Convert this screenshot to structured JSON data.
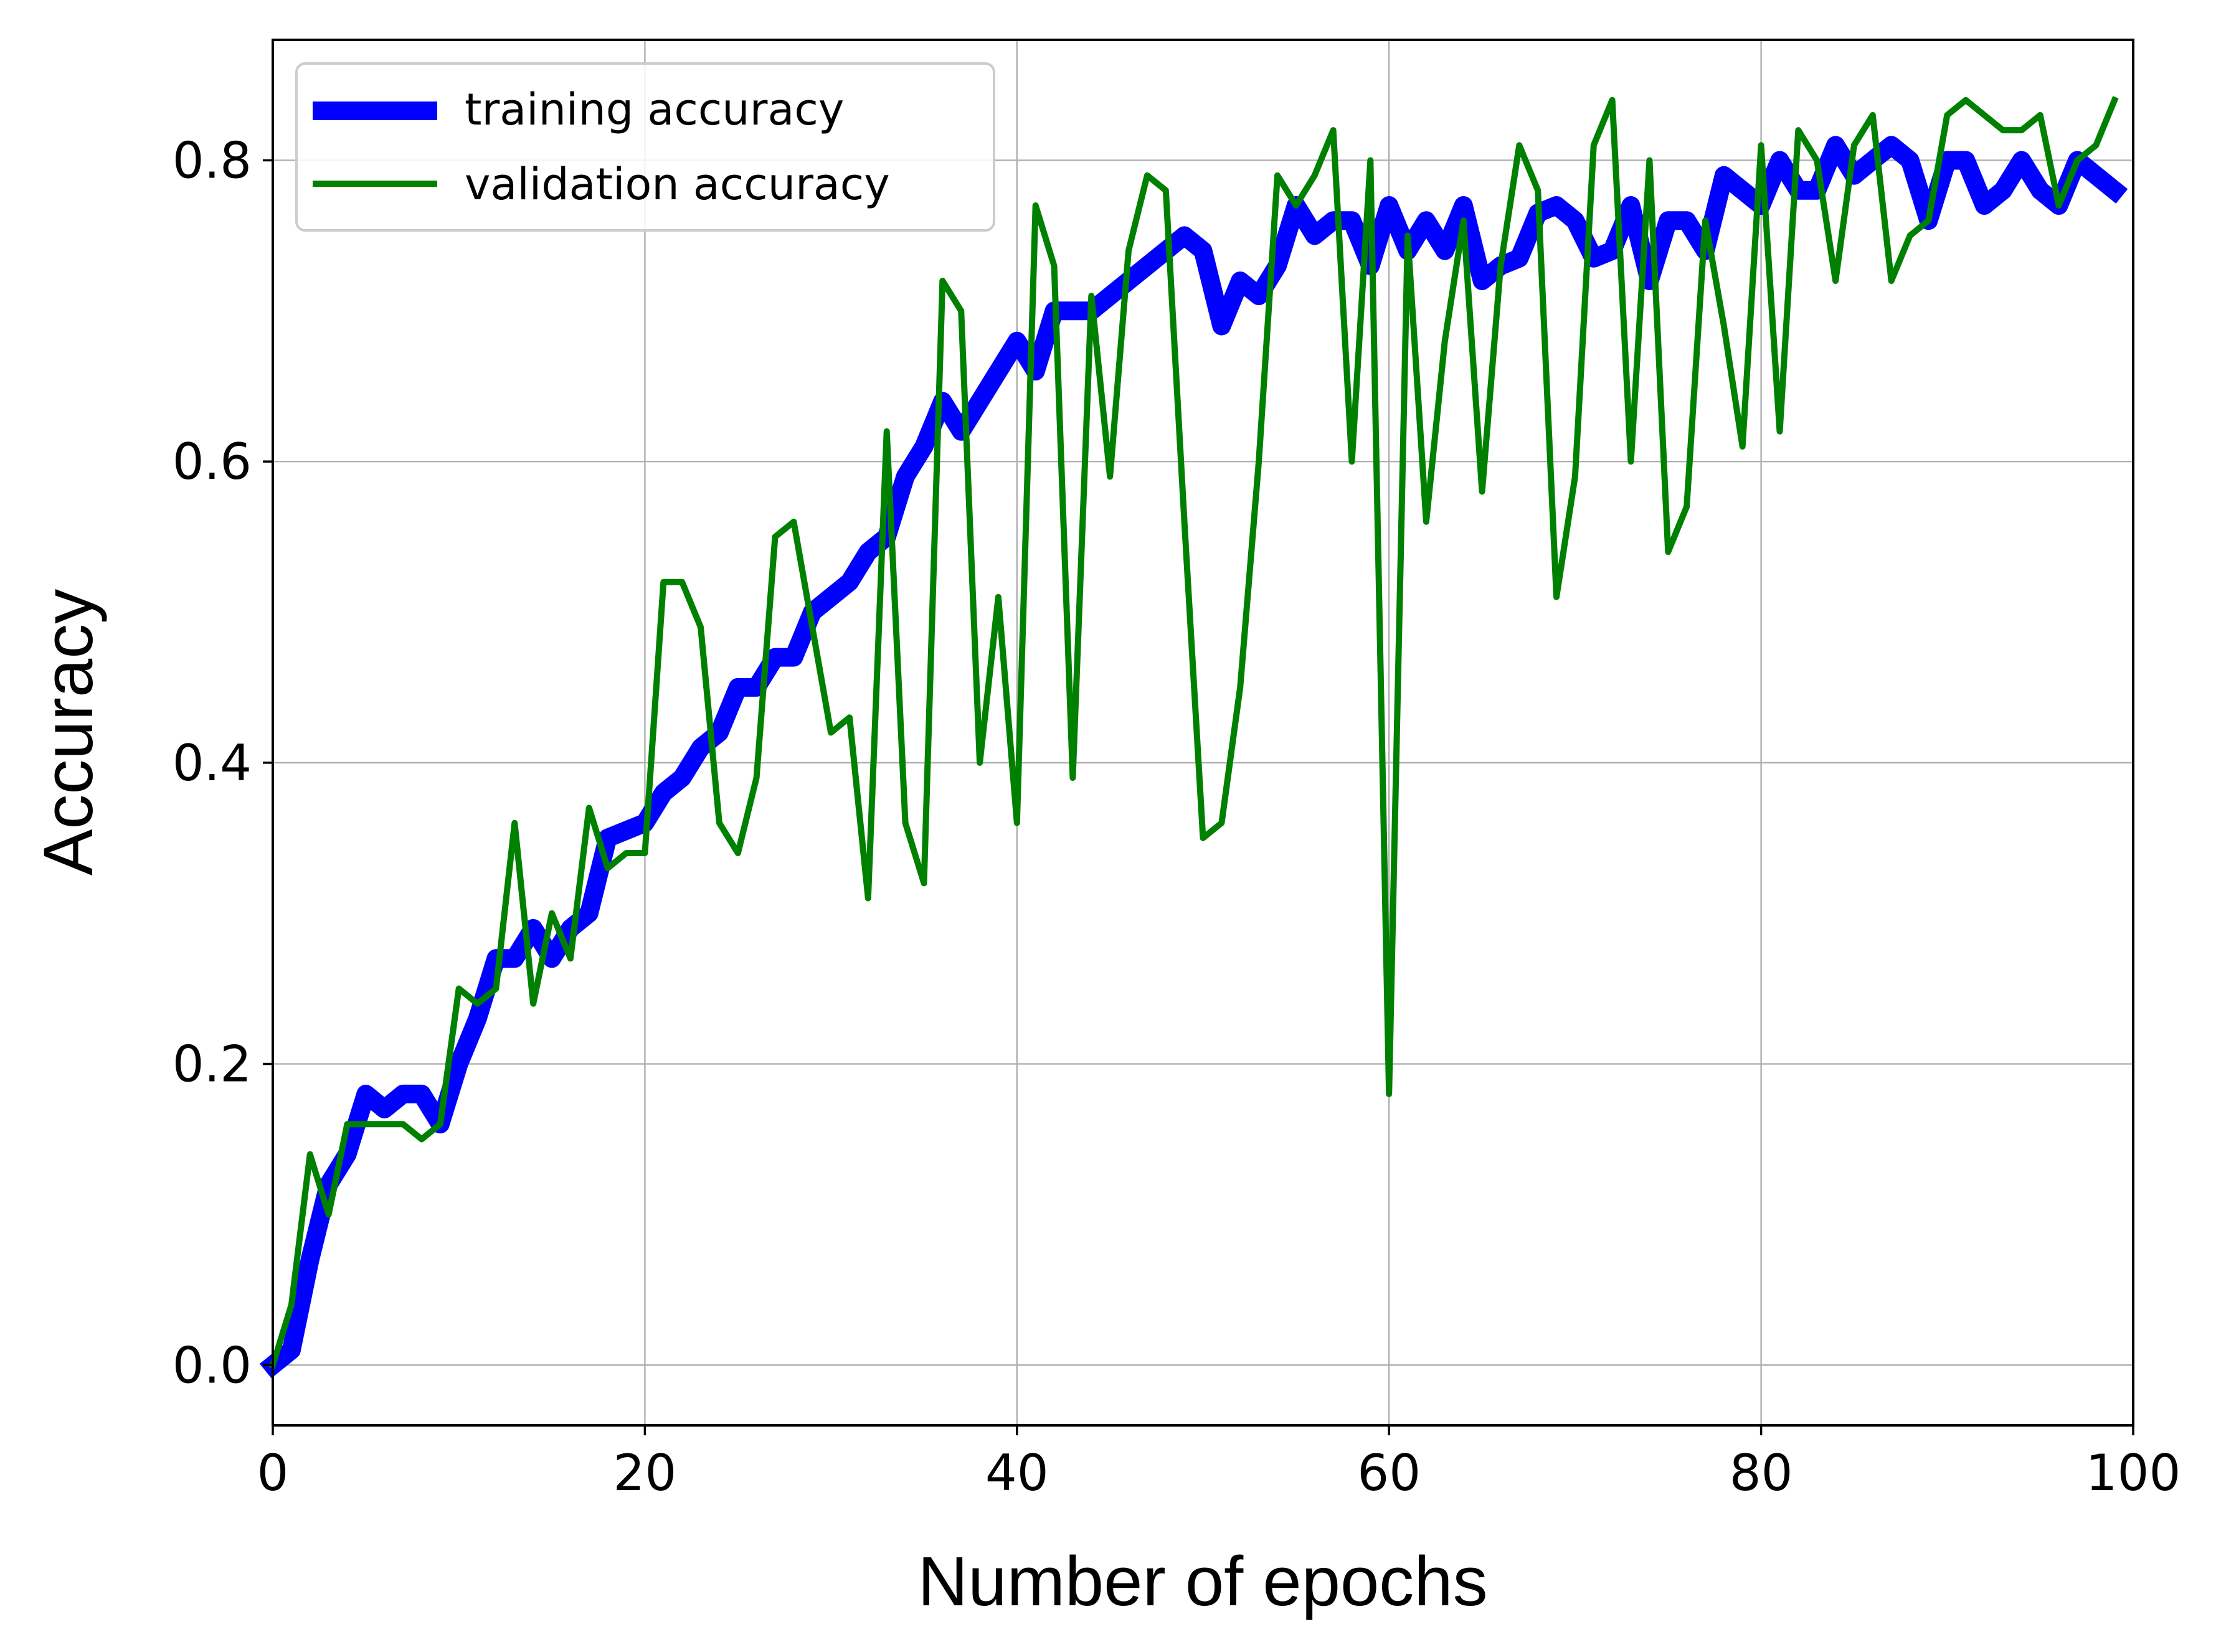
{
  "chart_data": {
    "type": "line",
    "xlabel": "Number of epochs",
    "ylabel": "Accuracy",
    "xlim": [
      0,
      100
    ],
    "ylim": [
      -0.04,
      0.88
    ],
    "xticks": [
      0,
      20,
      40,
      60,
      80,
      100
    ],
    "yticks": [
      0.0,
      0.2,
      0.4,
      0.6,
      0.8
    ],
    "xtick_labels": [
      "0",
      "20",
      "40",
      "60",
      "80",
      "100"
    ],
    "ytick_labels": [
      "0.0",
      "0.2",
      "0.4",
      "0.6",
      "0.8"
    ],
    "grid": true,
    "legend": "top-left",
    "x": [
      0,
      1,
      2,
      3,
      4,
      5,
      6,
      7,
      8,
      9,
      10,
      11,
      12,
      13,
      14,
      15,
      16,
      17,
      18,
      19,
      20,
      21,
      22,
      23,
      24,
      25,
      26,
      27,
      28,
      29,
      30,
      31,
      32,
      33,
      34,
      35,
      36,
      37,
      38,
      39,
      40,
      41,
      42,
      43,
      44,
      45,
      46,
      47,
      48,
      49,
      50,
      51,
      52,
      53,
      54,
      55,
      56,
      57,
      58,
      59,
      60,
      61,
      62,
      63,
      64,
      65,
      66,
      67,
      68,
      69,
      70,
      71,
      72,
      73,
      74,
      75,
      76,
      77,
      78,
      79,
      80,
      81,
      82,
      83,
      84,
      85,
      86,
      87,
      88,
      89,
      90,
      91,
      92,
      93,
      94,
      95,
      96,
      97,
      98,
      99
    ],
    "series": [
      {
        "name": "training accuracy",
        "color": "#0000ff",
        "values": [
          0.0,
          0.01,
          0.07,
          0.12,
          0.14,
          0.18,
          0.17,
          0.18,
          0.18,
          0.16,
          0.2,
          0.23,
          0.27,
          0.27,
          0.29,
          0.27,
          0.29,
          0.3,
          0.35,
          0.355,
          0.36,
          0.38,
          0.39,
          0.41,
          0.42,
          0.45,
          0.45,
          0.47,
          0.47,
          0.5,
          0.51,
          0.52,
          0.54,
          0.55,
          0.59,
          0.61,
          0.64,
          0.62,
          0.64,
          0.66,
          0.68,
          0.66,
          0.7,
          0.7,
          0.7,
          0.71,
          0.72,
          0.73,
          0.74,
          0.75,
          0.74,
          0.69,
          0.72,
          0.71,
          0.73,
          0.77,
          0.75,
          0.76,
          0.76,
          0.73,
          0.77,
          0.74,
          0.76,
          0.74,
          0.77,
          0.72,
          0.73,
          0.735,
          0.765,
          0.77,
          0.76,
          0.735,
          0.74,
          0.77,
          0.72,
          0.76,
          0.76,
          0.74,
          0.79,
          0.78,
          0.77,
          0.8,
          0.78,
          0.78,
          0.81,
          0.79,
          0.8,
          0.81,
          0.8,
          0.76,
          0.8,
          0.8,
          0.77,
          0.78,
          0.8,
          0.78,
          0.77,
          0.8,
          0.79,
          0.78
        ]
      },
      {
        "name": "validation accuracy",
        "color": "#008000",
        "values": [
          0.0,
          0.04,
          0.14,
          0.1,
          0.16,
          0.16,
          0.16,
          0.16,
          0.15,
          0.16,
          0.25,
          0.24,
          0.25,
          0.36,
          0.24,
          0.3,
          0.27,
          0.37,
          0.33,
          0.34,
          0.34,
          0.52,
          0.52,
          0.49,
          0.36,
          0.34,
          0.39,
          0.55,
          0.56,
          0.49,
          0.42,
          0.43,
          0.31,
          0.62,
          0.36,
          0.32,
          0.72,
          0.7,
          0.4,
          0.51,
          0.36,
          0.77,
          0.73,
          0.39,
          0.71,
          0.59,
          0.74,
          0.79,
          0.78,
          0.56,
          0.35,
          0.36,
          0.45,
          0.6,
          0.79,
          0.77,
          0.79,
          0.82,
          0.6,
          0.8,
          0.18,
          0.75,
          0.56,
          0.68,
          0.76,
          0.58,
          0.73,
          0.81,
          0.78,
          0.51,
          0.59,
          0.81,
          0.84,
          0.6,
          0.8,
          0.54,
          0.57,
          0.76,
          0.69,
          0.61,
          0.81,
          0.62,
          0.82,
          0.8,
          0.72,
          0.81,
          0.83,
          0.72,
          0.75,
          0.76,
          0.83,
          0.84,
          0.83,
          0.82,
          0.82,
          0.83,
          0.77,
          0.8,
          0.81,
          0.84
        ]
      }
    ]
  }
}
